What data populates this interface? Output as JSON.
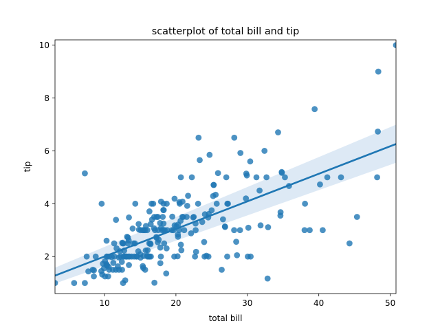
{
  "chart_data": {
    "type": "scatter",
    "title": "scatterplot of total bill and tip",
    "xlabel": "total bill",
    "ylabel": "tip",
    "xlim": [
      3.07,
      50.81
    ],
    "ylim": [
      0.6,
      10.2
    ],
    "xticks": [
      10,
      20,
      30,
      40,
      50
    ],
    "yticks": [
      2,
      4,
      6,
      8,
      10
    ],
    "grid": false,
    "point_color": "#1f77b4",
    "line_color": "#1f77b4",
    "band_color": "#c6dbef",
    "regression": {
      "x": [
        3.07,
        50.81
      ],
      "y": [
        1.28,
        6.26
      ],
      "ci_upper": [
        1.58,
        6.99
      ],
      "ci_lower": [
        0.98,
        5.55
      ]
    },
    "points": [
      [
        3.07,
        1.0
      ],
      [
        5.75,
        1.0
      ],
      [
        7.25,
        1.0
      ],
      [
        7.25,
        5.15
      ],
      [
        7.51,
        2.0
      ],
      [
        7.74,
        1.44
      ],
      [
        8.35,
        1.5
      ],
      [
        8.51,
        1.25
      ],
      [
        8.52,
        1.48
      ],
      [
        8.77,
        2.0
      ],
      [
        9.55,
        1.45
      ],
      [
        9.6,
        4.0
      ],
      [
        9.68,
        1.32
      ],
      [
        9.78,
        1.73
      ],
      [
        9.94,
        1.56
      ],
      [
        10.07,
        1.83
      ],
      [
        10.07,
        1.25
      ],
      [
        10.27,
        1.71
      ],
      [
        10.29,
        2.6
      ],
      [
        10.33,
        1.67
      ],
      [
        10.33,
        2.0
      ],
      [
        10.34,
        1.66
      ],
      [
        10.34,
        2.0
      ],
      [
        10.51,
        1.25
      ],
      [
        10.59,
        1.61
      ],
      [
        10.63,
        2.0
      ],
      [
        10.65,
        1.5
      ],
      [
        11.02,
        1.98
      ],
      [
        11.17,
        1.5
      ],
      [
        11.24,
        1.76
      ],
      [
        11.35,
        2.5
      ],
      [
        11.38,
        2.0
      ],
      [
        11.59,
        1.5
      ],
      [
        11.61,
        3.39
      ],
      [
        11.69,
        2.31
      ],
      [
        11.87,
        1.63
      ],
      [
        12.02,
        1.97
      ],
      [
        12.03,
        1.5
      ],
      [
        12.16,
        2.2
      ],
      [
        12.26,
        2.0
      ],
      [
        12.43,
        1.8
      ],
      [
        12.46,
        1.5
      ],
      [
        12.48,
        2.52
      ],
      [
        12.54,
        2.5
      ],
      [
        12.6,
        1.0
      ],
      [
        12.66,
        2.5
      ],
      [
        12.69,
        2.0
      ],
      [
        12.74,
        2.01
      ],
      [
        12.76,
        2.23
      ],
      [
        12.9,
        1.1
      ],
      [
        13.0,
        2.0
      ],
      [
        13.03,
        2.0
      ],
      [
        13.13,
        2.0
      ],
      [
        13.16,
        2.75
      ],
      [
        13.27,
        2.5
      ],
      [
        13.28,
        2.72
      ],
      [
        13.37,
        2.0
      ],
      [
        13.39,
        2.61
      ],
      [
        13.42,
        1.68
      ],
      [
        13.42,
        3.48
      ],
      [
        13.51,
        2.0
      ],
      [
        13.81,
        2.0
      ],
      [
        13.94,
        3.06
      ],
      [
        14.07,
        2.5
      ],
      [
        14.15,
        2.0
      ],
      [
        14.26,
        2.5
      ],
      [
        14.31,
        4.0
      ],
      [
        14.48,
        2.0
      ],
      [
        14.52,
        2.0
      ],
      [
        14.73,
        2.2
      ],
      [
        14.78,
        3.23
      ],
      [
        14.83,
        3.02
      ],
      [
        15.01,
        2.09
      ],
      [
        15.04,
        1.96
      ],
      [
        15.06,
        3.0
      ],
      [
        15.36,
        1.64
      ],
      [
        15.38,
        3.0
      ],
      [
        15.42,
        1.57
      ],
      [
        15.48,
        2.02
      ],
      [
        15.53,
        3.0
      ],
      [
        15.69,
        1.5
      ],
      [
        15.69,
        3.0
      ],
      [
        15.77,
        2.23
      ],
      [
        15.81,
        3.16
      ],
      [
        15.98,
        2.03
      ],
      [
        15.98,
        3.0
      ],
      [
        16.0,
        2.0
      ],
      [
        16.04,
        2.24
      ],
      [
        16.21,
        2.0
      ],
      [
        16.27,
        2.5
      ],
      [
        16.29,
        3.71
      ],
      [
        16.31,
        2.0
      ],
      [
        16.4,
        2.5
      ],
      [
        16.45,
        2.47
      ],
      [
        16.47,
        3.23
      ],
      [
        16.49,
        2.0
      ],
      [
        16.58,
        4.0
      ],
      [
        16.66,
        3.4
      ],
      [
        16.82,
        4.0
      ],
      [
        16.93,
        3.07
      ],
      [
        16.97,
        3.5
      ],
      [
        16.99,
        1.01
      ],
      [
        17.07,
        3.0
      ],
      [
        17.26,
        2.74
      ],
      [
        17.29,
        2.71
      ],
      [
        17.31,
        3.5
      ],
      [
        17.46,
        2.54
      ],
      [
        17.47,
        3.5
      ],
      [
        17.51,
        3.0
      ],
      [
        17.59,
        2.64
      ],
      [
        17.78,
        3.27
      ],
      [
        17.81,
        2.34
      ],
      [
        17.82,
        1.75
      ],
      [
        17.89,
        2.0
      ],
      [
        17.92,
        3.08
      ],
      [
        17.92,
        4.08
      ],
      [
        18.04,
        3.0
      ],
      [
        18.15,
        3.5
      ],
      [
        18.24,
        3.76
      ],
      [
        18.26,
        3.25
      ],
      [
        18.28,
        4.0
      ],
      [
        18.29,
        3.0
      ],
      [
        18.29,
        3.76
      ],
      [
        18.35,
        2.5
      ],
      [
        18.43,
        3.0
      ],
      [
        18.64,
        1.36
      ],
      [
        18.69,
        2.31
      ],
      [
        18.71,
        4.0
      ],
      [
        18.78,
        3.0
      ],
      [
        19.44,
        3.0
      ],
      [
        19.49,
        3.51
      ],
      [
        19.65,
        3.0
      ],
      [
        19.77,
        2.0
      ],
      [
        19.81,
        4.19
      ],
      [
        19.82,
        3.18
      ],
      [
        20.08,
        3.15
      ],
      [
        20.23,
        2.01
      ],
      [
        20.27,
        2.83
      ],
      [
        20.29,
        2.75
      ],
      [
        20.29,
        3.21
      ],
      [
        20.45,
        3.0
      ],
      [
        20.49,
        4.06
      ],
      [
        20.53,
        4.0
      ],
      [
        20.65,
        3.35
      ],
      [
        20.69,
        2.45
      ],
      [
        20.69,
        5.0
      ],
      [
        20.76,
        2.24
      ],
      [
        20.9,
        3.5
      ],
      [
        20.92,
        4.08
      ],
      [
        21.01,
        3.5
      ],
      [
        21.16,
        3.0
      ],
      [
        21.5,
        3.5
      ],
      [
        21.58,
        3.92
      ],
      [
        21.7,
        4.3
      ],
      [
        22.12,
        2.88
      ],
      [
        22.23,
        5.0
      ],
      [
        22.42,
        3.48
      ],
      [
        22.49,
        3.5
      ],
      [
        22.67,
        2.0
      ],
      [
        22.75,
        3.25
      ],
      [
        22.76,
        3.0
      ],
      [
        22.82,
        2.18
      ],
      [
        23.1,
        4.0
      ],
      [
        23.17,
        6.5
      ],
      [
        23.33,
        5.65
      ],
      [
        23.68,
        3.31
      ],
      [
        23.95,
        2.55
      ],
      [
        24.01,
        2.0
      ],
      [
        24.06,
        3.6
      ],
      [
        24.27,
        2.03
      ],
      [
        24.52,
        3.48
      ],
      [
        24.55,
        2.0
      ],
      [
        24.59,
        3.61
      ],
      [
        24.71,
        5.85
      ],
      [
        25.0,
        3.75
      ],
      [
        25.21,
        4.29
      ],
      [
        25.28,
        4.71
      ],
      [
        25.29,
        4.71
      ],
      [
        25.56,
        4.34
      ],
      [
        25.71,
        4.0
      ],
      [
        25.89,
        5.16
      ],
      [
        26.41,
        1.5
      ],
      [
        26.59,
        3.41
      ],
      [
        26.86,
        3.14
      ],
      [
        26.88,
        3.12
      ],
      [
        27.05,
        5.0
      ],
      [
        27.18,
        2.0
      ],
      [
        27.2,
        4.0
      ],
      [
        27.28,
        4.0
      ],
      [
        28.15,
        3.0
      ],
      [
        28.17,
        6.5
      ],
      [
        28.44,
        2.56
      ],
      [
        28.55,
        2.05
      ],
      [
        28.97,
        3.0
      ],
      [
        29.03,
        5.92
      ],
      [
        29.8,
        4.2
      ],
      [
        29.85,
        5.14
      ],
      [
        29.93,
        5.07
      ],
      [
        30.06,
        2.0
      ],
      [
        30.14,
        3.09
      ],
      [
        30.4,
        5.6
      ],
      [
        30.46,
        2.0
      ],
      [
        31.27,
        5.0
      ],
      [
        31.71,
        4.5
      ],
      [
        31.85,
        3.18
      ],
      [
        32.4,
        6.0
      ],
      [
        32.68,
        5.0
      ],
      [
        32.83,
        1.17
      ],
      [
        32.9,
        3.11
      ],
      [
        34.3,
        6.7
      ],
      [
        34.63,
        3.55
      ],
      [
        34.65,
        3.68
      ],
      [
        34.81,
        5.2
      ],
      [
        34.83,
        5.17
      ],
      [
        35.26,
        5.0
      ],
      [
        35.83,
        4.67
      ],
      [
        38.01,
        3.0
      ],
      [
        38.07,
        4.0
      ],
      [
        38.73,
        3.0
      ],
      [
        39.42,
        7.58
      ],
      [
        40.17,
        4.73
      ],
      [
        40.55,
        3.0
      ],
      [
        41.19,
        5.0
      ],
      [
        43.11,
        5.0
      ],
      [
        44.3,
        2.5
      ],
      [
        45.35,
        3.5
      ],
      [
        48.17,
        5.0
      ],
      [
        48.27,
        6.73
      ],
      [
        48.33,
        9.0
      ],
      [
        50.81,
        10.0
      ]
    ]
  }
}
